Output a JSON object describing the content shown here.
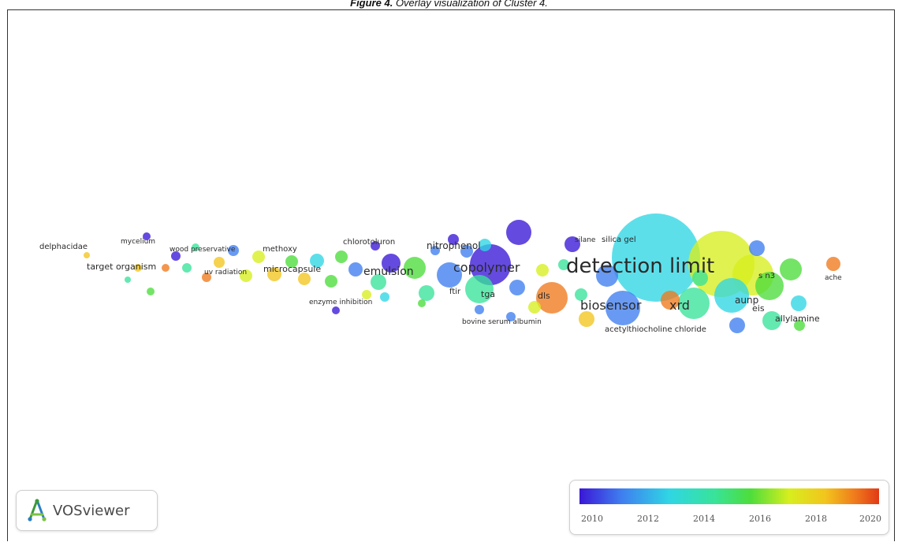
{
  "caption": {
    "label": "Figure 4.",
    "text": "Overlay visualization of Cluster 4."
  },
  "logo": {
    "text": "VOSviewer",
    "icon": "vosviewer-logo-icon",
    "colors": [
      "#3a9a3a",
      "#2b7fc0",
      "#7cc243"
    ]
  },
  "legend": {
    "ticks": [
      "2010",
      "2012",
      "2014",
      "2016",
      "2018",
      "2020"
    ],
    "colors": [
      "#3a17d6",
      "#3f7ef0",
      "#2fd6e4",
      "#38e39a",
      "#4ddd3c",
      "#d7ee1e",
      "#f2c51d",
      "#ef7a1c",
      "#e13a16"
    ]
  },
  "network": {
    "labels": [
      {
        "text": "delphacidae"
      },
      {
        "text": "mycelium"
      },
      {
        "text": "wood preservative"
      },
      {
        "text": "methoxy"
      },
      {
        "text": "chlorotoluron"
      },
      {
        "text": "nitrophenol"
      },
      {
        "text": "silane"
      },
      {
        "text": "silica gel"
      },
      {
        "text": "target organism"
      },
      {
        "text": "uv radiation"
      },
      {
        "text": "microcapsule"
      },
      {
        "text": "emulsion"
      },
      {
        "text": "copolymer"
      },
      {
        "text": "detection limit"
      },
      {
        "text": "s n3"
      },
      {
        "text": "ache"
      },
      {
        "text": "enzyme inhibition"
      },
      {
        "text": "ftir"
      },
      {
        "text": "tga"
      },
      {
        "text": "dls"
      },
      {
        "text": "biosensor"
      },
      {
        "text": "xrd"
      },
      {
        "text": "aunp"
      },
      {
        "text": "eis"
      },
      {
        "text": "allylamine"
      },
      {
        "text": "bovine serum albumin"
      },
      {
        "text": "acetylthiocholine chloride"
      }
    ]
  }
}
